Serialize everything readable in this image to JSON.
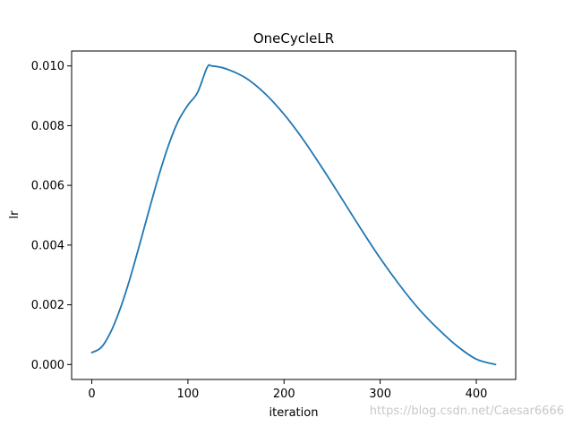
{
  "chart_data": {
    "type": "line",
    "title": "OneCycleLR",
    "xlabel": "iteration",
    "ylabel": "lr",
    "xlim": [
      -21,
      441
    ],
    "ylim": [
      -0.0005,
      0.0105
    ],
    "xticks": [
      0,
      100,
      200,
      300,
      400
    ],
    "xtick_labels": [
      "0",
      "100",
      "200",
      "300",
      "400"
    ],
    "yticks": [
      0.0,
      0.002,
      0.004,
      0.006,
      0.008,
      0.01
    ],
    "ytick_labels": [
      "0.000",
      "0.002",
      "0.004",
      "0.006",
      "0.008",
      "0.010"
    ],
    "grid": false,
    "series": [
      {
        "color": "#1f77b4",
        "x": [
          0,
          10,
          20,
          30,
          40,
          50,
          60,
          70,
          80,
          90,
          100,
          110,
          120,
          125,
          140,
          160,
          180,
          200,
          220,
          240,
          260,
          280,
          300,
          320,
          340,
          360,
          380,
          400,
          420
        ],
        "y": [
          0.0004,
          0.00058,
          0.00111,
          0.00191,
          0.00291,
          0.00405,
          0.00522,
          0.00636,
          0.00736,
          0.00816,
          0.00869,
          0.00911,
          0.00995,
          0.01,
          0.0099,
          0.0096,
          0.00908,
          0.00838,
          0.00753,
          0.00657,
          0.00556,
          0.00454,
          0.00356,
          0.00267,
          0.00187,
          0.0012,
          0.00062,
          0.00018,
          0.0
        ]
      }
    ]
  },
  "watermark": "https://blog.csdn.net/Caesar6666"
}
